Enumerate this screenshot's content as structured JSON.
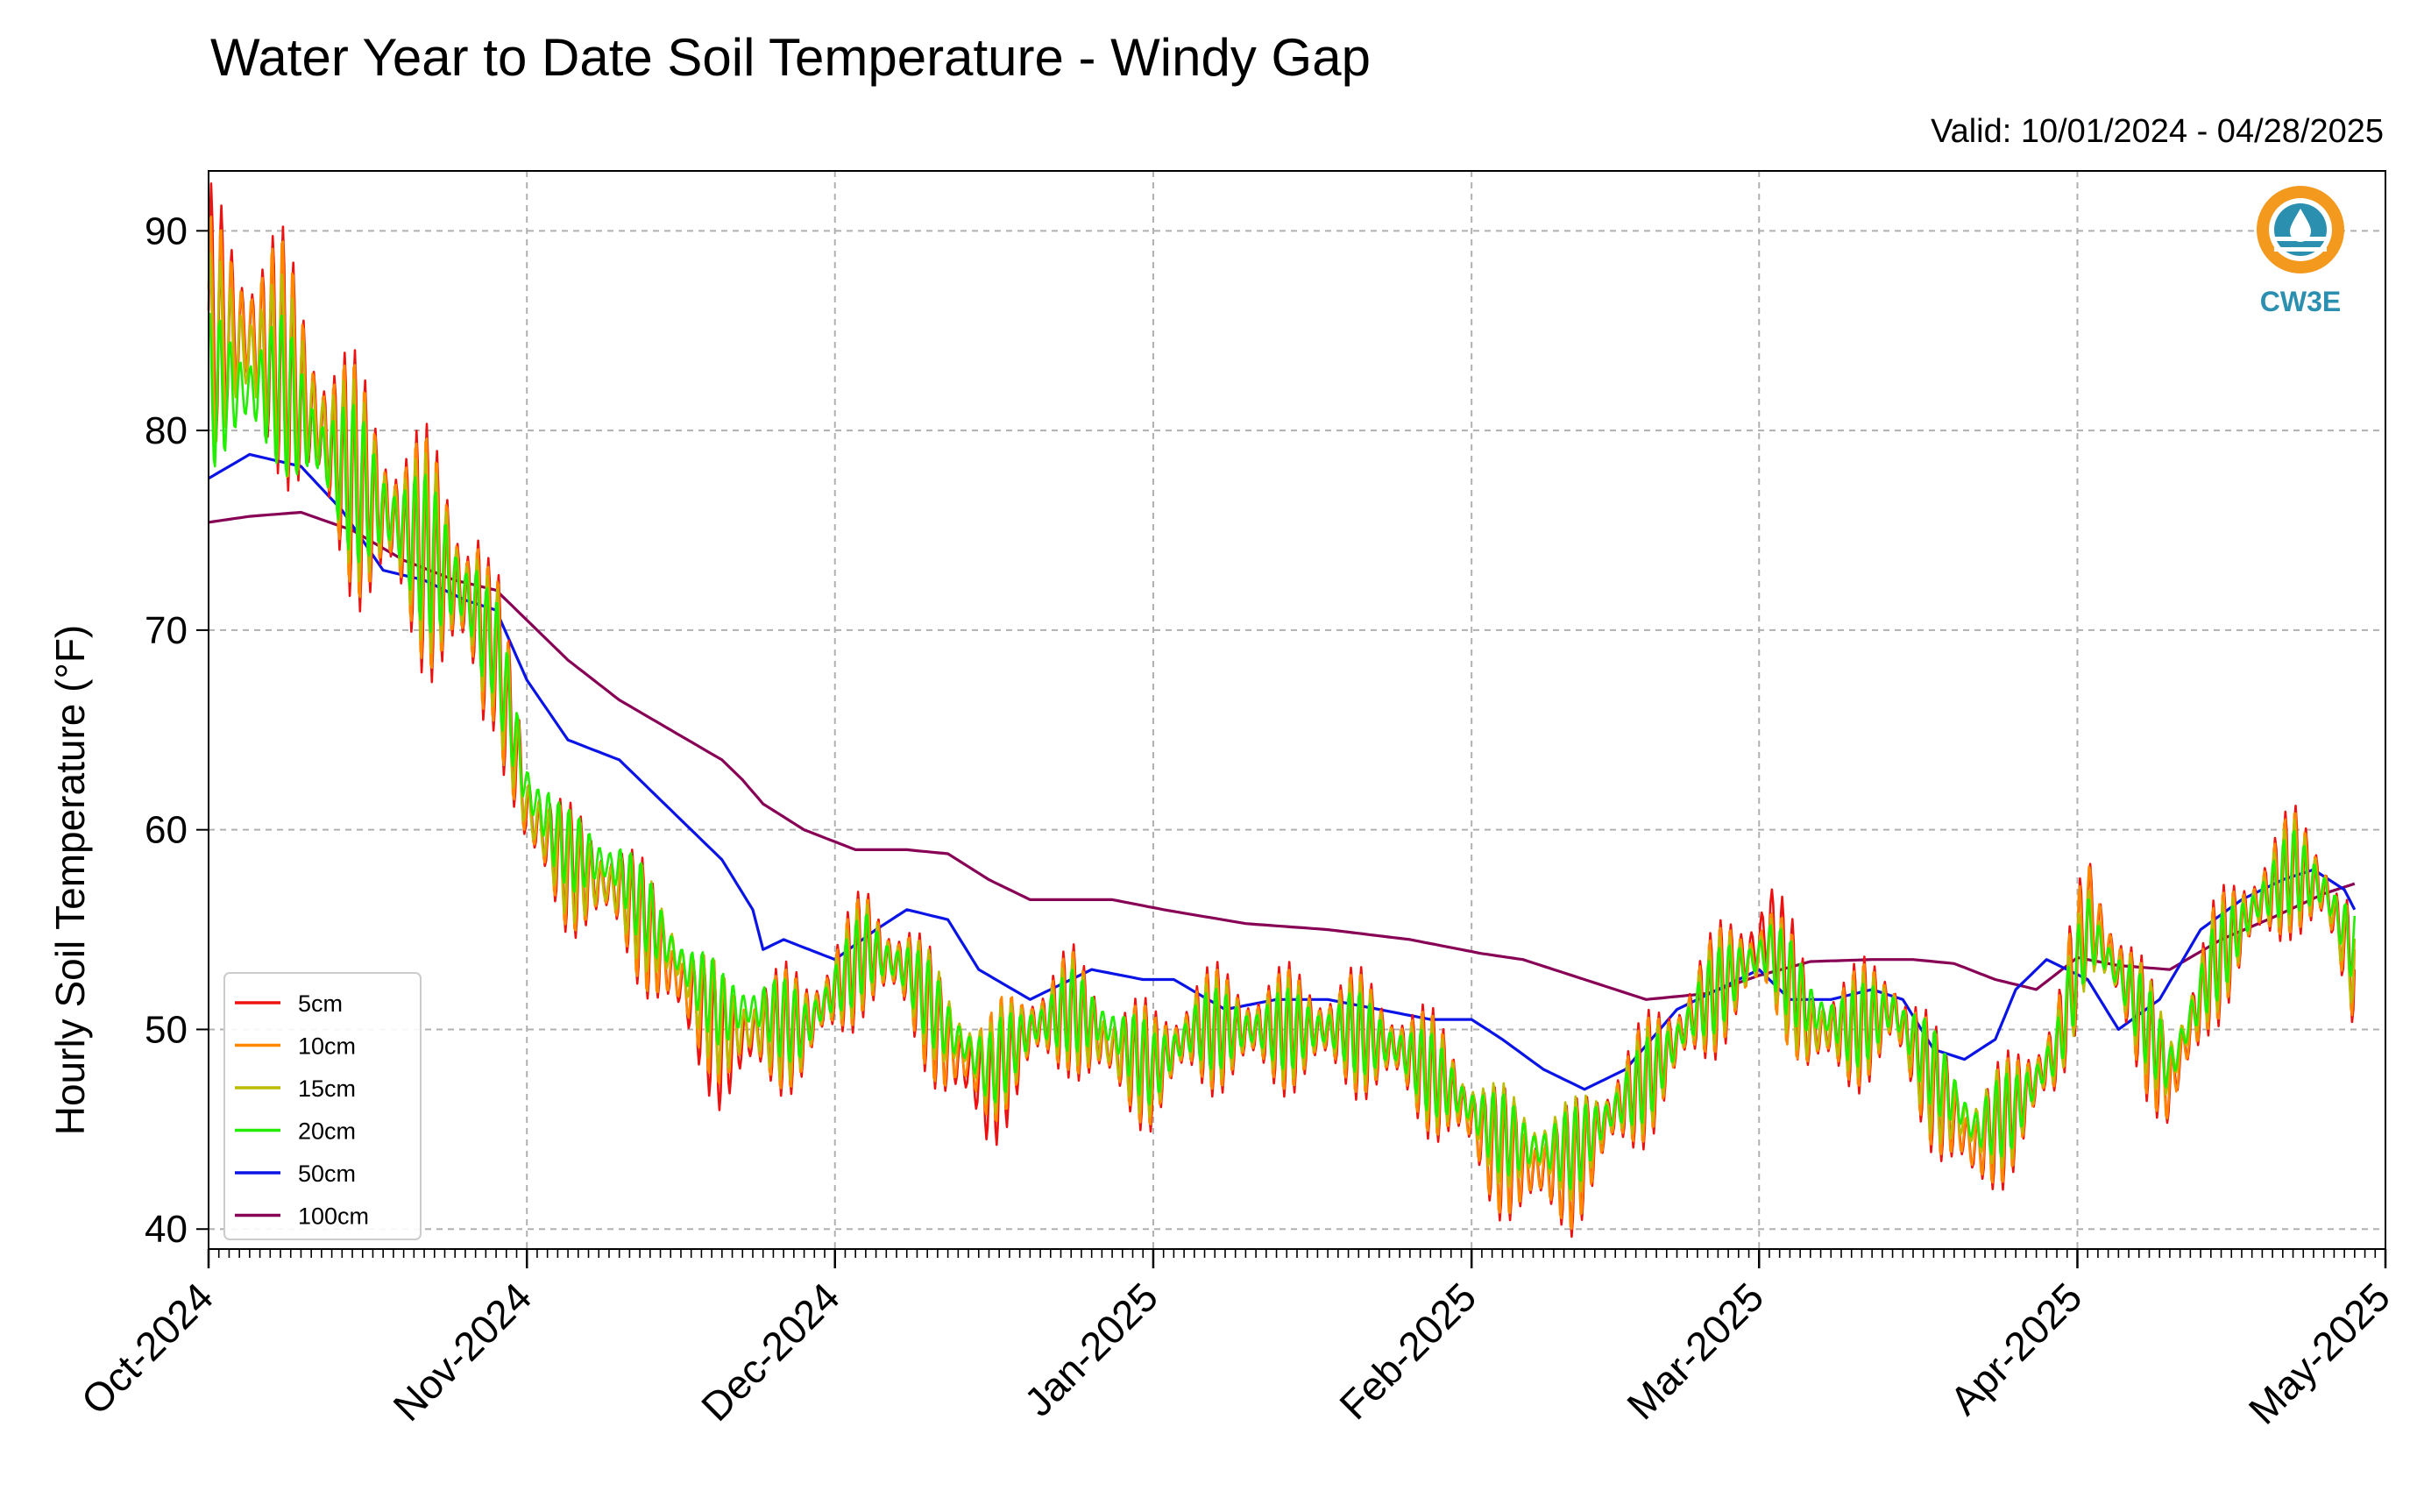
{
  "chart_data": {
    "type": "line",
    "title": "Water Year to Date Soil Temperature - Windy Gap",
    "subtitle": "Valid: 10/01/2024 - 04/28/2025",
    "ylabel": "Hourly Soil Temperature (°F)",
    "xlabel": "",
    "xlim": [
      "2024-10-01",
      "2025-05-01"
    ],
    "ylim": [
      39,
      93
    ],
    "yticks": [
      40,
      50,
      60,
      70,
      80,
      90
    ],
    "xticks": [
      {
        "date": "2024-10-01",
        "label": "Oct-2024"
      },
      {
        "date": "2024-11-01",
        "label": "Nov-2024"
      },
      {
        "date": "2024-12-01",
        "label": "Dec-2024"
      },
      {
        "date": "2025-01-01",
        "label": "Jan-2025"
      },
      {
        "date": "2025-02-01",
        "label": "Feb-2025"
      },
      {
        "date": "2025-03-01",
        "label": "Mar-2025"
      },
      {
        "date": "2025-04-01",
        "label": "Apr-2025"
      },
      {
        "date": "2025-05-01",
        "label": "May-2025"
      }
    ],
    "grid": true,
    "legend_position": "lower-left",
    "logo_text": "CW3E",
    "series": [
      {
        "name": "5cm",
        "color": "#ee1111",
        "x": [
          "2024-10-01",
          "2024-10-04",
          "2024-10-08",
          "2024-10-12",
          "2024-10-16",
          "2024-10-20",
          "2024-10-24",
          "2024-10-27",
          "2024-10-29",
          "2024-11-01",
          "2024-11-05",
          "2024-11-10",
          "2024-11-15",
          "2024-11-20",
          "2024-11-24",
          "2024-11-28",
          "2024-12-01",
          "2024-12-04",
          "2024-12-08",
          "2024-12-12",
          "2024-12-16",
          "2024-12-20",
          "2024-12-24",
          "2024-12-28",
          "2025-01-01",
          "2025-01-05",
          "2025-01-10",
          "2025-01-15",
          "2025-01-20",
          "2025-01-25",
          "2025-01-30",
          "2025-02-03",
          "2025-02-07",
          "2025-02-11",
          "2025-02-15",
          "2025-02-19",
          "2025-02-23",
          "2025-02-27",
          "2025-03-02",
          "2025-03-06",
          "2025-03-10",
          "2025-03-14",
          "2025-03-18",
          "2025-03-22",
          "2025-03-26",
          "2025-03-30",
          "2025-04-02",
          "2025-04-06",
          "2025-04-10",
          "2025-04-14",
          "2025-04-18",
          "2025-04-22",
          "2025-04-25",
          "2025-04-28"
        ],
        "y": [
          86,
          85,
          84,
          80,
          77,
          75,
          73,
          71,
          69,
          61,
          58,
          57,
          53,
          49,
          50,
          50,
          52,
          54,
          53,
          49,
          47,
          50,
          51,
          49,
          48,
          50,
          50,
          50,
          50,
          49,
          47,
          44,
          43,
          43,
          46,
          48,
          51,
          53,
          55,
          50,
          50,
          51,
          47,
          44,
          46,
          49,
          56,
          52,
          47,
          53,
          56,
          58,
          57,
          53
        ]
      },
      {
        "name": "10cm",
        "color": "#ff8800",
        "x": [
          "2024-10-01",
          "2024-10-04",
          "2024-10-08",
          "2024-10-12",
          "2024-10-16",
          "2024-10-20",
          "2024-10-24",
          "2024-10-27",
          "2024-10-29",
          "2024-11-01",
          "2024-11-05",
          "2024-11-10",
          "2024-11-15",
          "2024-11-20",
          "2024-11-24",
          "2024-11-28",
          "2024-12-01",
          "2024-12-04",
          "2024-12-08",
          "2024-12-12",
          "2024-12-16",
          "2024-12-20",
          "2024-12-24",
          "2024-12-28",
          "2025-01-01",
          "2025-01-05",
          "2025-01-10",
          "2025-01-15",
          "2025-01-20",
          "2025-01-25",
          "2025-01-30",
          "2025-02-03",
          "2025-02-07",
          "2025-02-11",
          "2025-02-15",
          "2025-02-19",
          "2025-02-23",
          "2025-02-27",
          "2025-03-02",
          "2025-03-06",
          "2025-03-10",
          "2025-03-14",
          "2025-03-18",
          "2025-03-22",
          "2025-03-26",
          "2025-03-30",
          "2025-04-02",
          "2025-04-06",
          "2025-04-10",
          "2025-04-14",
          "2025-04-18",
          "2025-04-22",
          "2025-04-25",
          "2025-04-28"
        ],
        "y": [
          85,
          85,
          84,
          80,
          77,
          75,
          73,
          71,
          69,
          61,
          58,
          57,
          53,
          50,
          50,
          50,
          52,
          54,
          53,
          49,
          48,
          50,
          51,
          49,
          48,
          50,
          50,
          50,
          50,
          49,
          47,
          44,
          43,
          43,
          46,
          48,
          51,
          53,
          54,
          50,
          50,
          51,
          47,
          44,
          46,
          49,
          56,
          52,
          47,
          53,
          56,
          58,
          57,
          53
        ]
      },
      {
        "name": "15cm",
        "color": "#bbbb00",
        "x": [
          "2024-10-01",
          "2024-10-04",
          "2024-10-08",
          "2024-10-12",
          "2024-10-16",
          "2024-10-20",
          "2024-10-24",
          "2024-10-27",
          "2024-10-29",
          "2024-11-01",
          "2024-11-05",
          "2024-11-10",
          "2024-11-15",
          "2024-11-20",
          "2024-11-24",
          "2024-11-28",
          "2024-12-01",
          "2024-12-04",
          "2024-12-08",
          "2024-12-12",
          "2024-12-16",
          "2024-12-20",
          "2024-12-24",
          "2024-12-28",
          "2025-01-01",
          "2025-01-05",
          "2025-01-10",
          "2025-01-15",
          "2025-01-20",
          "2025-01-25",
          "2025-01-30",
          "2025-02-03",
          "2025-02-07",
          "2025-02-11",
          "2025-02-15",
          "2025-02-19",
          "2025-02-23",
          "2025-02-27",
          "2025-03-02",
          "2025-03-06",
          "2025-03-10",
          "2025-03-14",
          "2025-03-18",
          "2025-03-22",
          "2025-03-26",
          "2025-03-30",
          "2025-04-02",
          "2025-04-06",
          "2025-04-10",
          "2025-04-14",
          "2025-04-18",
          "2025-04-22",
          "2025-04-25",
          "2025-04-28"
        ],
        "y": [
          84,
          84,
          83,
          80,
          77,
          75,
          73,
          71,
          69,
          61,
          58,
          57,
          54,
          50,
          50,
          50,
          52,
          54,
          53,
          50,
          48,
          50,
          51,
          49,
          48,
          50,
          50,
          50,
          50,
          49,
          47,
          45,
          44,
          44,
          46,
          48,
          51,
          53,
          54,
          50,
          50,
          51,
          47,
          45,
          46,
          49,
          55,
          52,
          48,
          53,
          56,
          58,
          57,
          53
        ]
      },
      {
        "name": "20cm",
        "color": "#22ee00",
        "x": [
          "2024-10-01",
          "2024-10-04",
          "2024-10-08",
          "2024-10-12",
          "2024-10-16",
          "2024-10-20",
          "2024-10-24",
          "2024-10-27",
          "2024-10-29",
          "2024-11-01",
          "2024-11-05",
          "2024-11-10",
          "2024-11-15",
          "2024-11-20",
          "2024-11-24",
          "2024-11-28",
          "2024-12-01",
          "2024-12-04",
          "2024-12-08",
          "2024-12-12",
          "2024-12-16",
          "2024-12-20",
          "2024-12-24",
          "2024-12-28",
          "2025-01-01",
          "2025-01-05",
          "2025-01-10",
          "2025-01-15",
          "2025-01-20",
          "2025-01-25",
          "2025-01-30",
          "2025-02-03",
          "2025-02-07",
          "2025-02-11",
          "2025-02-15",
          "2025-02-19",
          "2025-02-23",
          "2025-02-27",
          "2025-03-02",
          "2025-03-06",
          "2025-03-10",
          "2025-03-14",
          "2025-03-18",
          "2025-03-22",
          "2025-03-26",
          "2025-03-30",
          "2025-04-02",
          "2025-04-06",
          "2025-04-10",
          "2025-04-14",
          "2025-04-18",
          "2025-04-22",
          "2025-04-25",
          "2025-04-28"
        ],
        "y": [
          82,
          82,
          82,
          79,
          77,
          75,
          73,
          71,
          69,
          62,
          59,
          58,
          54,
          51,
          51,
          50,
          52,
          54,
          53,
          50,
          48,
          50,
          51,
          50,
          48,
          50,
          50,
          50,
          50,
          49,
          47,
          45,
          44,
          44,
          46,
          48,
          51,
          53,
          54,
          51,
          50,
          51,
          48,
          45,
          46,
          49,
          55,
          52,
          48,
          53,
          56,
          58,
          57,
          54
        ]
      },
      {
        "name": "50cm",
        "color": "#0a14e6",
        "x": [
          "2024-10-01",
          "2024-10-05",
          "2024-10-10",
          "2024-10-14",
          "2024-10-18",
          "2024-10-22",
          "2024-10-26",
          "2024-10-29",
          "2024-11-01",
          "2024-11-05",
          "2024-11-10",
          "2024-11-15",
          "2024-11-20",
          "2024-11-23",
          "2024-11-24",
          "2024-11-26",
          "2024-12-01",
          "2024-12-05",
          "2024-12-08",
          "2024-12-12",
          "2024-12-15",
          "2024-12-20",
          "2024-12-26",
          "2024-12-31",
          "2025-01-03",
          "2025-01-08",
          "2025-01-13",
          "2025-01-18",
          "2025-01-23",
          "2025-01-28",
          "2025-02-01",
          "2025-02-04",
          "2025-02-08",
          "2025-02-12",
          "2025-02-16",
          "2025-02-21",
          "2025-02-25",
          "2025-03-01",
          "2025-03-04",
          "2025-03-08",
          "2025-03-12",
          "2025-03-15",
          "2025-03-18",
          "2025-03-21",
          "2025-03-24",
          "2025-03-26",
          "2025-03-29",
          "2025-04-02",
          "2025-04-05",
          "2025-04-09",
          "2025-04-13",
          "2025-04-17",
          "2025-04-21",
          "2025-04-24",
          "2025-04-27",
          "2025-04-28"
        ],
        "y": [
          77.6,
          78.8,
          78.2,
          76.0,
          73.0,
          72.5,
          71.5,
          71.0,
          67.5,
          64.5,
          63.5,
          61.0,
          58.5,
          56.0,
          54.0,
          54.5,
          53.5,
          55.0,
          56.0,
          55.5,
          53.0,
          51.5,
          53.0,
          52.5,
          52.5,
          51.0,
          51.5,
          51.5,
          51.0,
          50.5,
          50.5,
          49.5,
          48.0,
          47.0,
          48.0,
          51.0,
          52.0,
          53.0,
          51.5,
          51.5,
          52.0,
          51.5,
          49.0,
          48.5,
          49.5,
          52.0,
          53.5,
          52.5,
          50.0,
          51.5,
          55.0,
          56.5,
          57.5,
          58.0,
          57.0,
          56.0
        ]
      },
      {
        "name": "100cm",
        "color": "#880055",
        "x": [
          "2024-10-01",
          "2024-10-05",
          "2024-10-10",
          "2024-10-15",
          "2024-10-20",
          "2024-10-25",
          "2024-10-29",
          "2024-11-01",
          "2024-11-05",
          "2024-11-10",
          "2024-11-15",
          "2024-11-20",
          "2024-11-22",
          "2024-11-24",
          "2024-11-28",
          "2024-12-03",
          "2024-12-08",
          "2024-12-12",
          "2024-12-16",
          "2024-12-20",
          "2024-12-28",
          "2025-01-02",
          "2025-01-10",
          "2025-01-18",
          "2025-01-26",
          "2025-02-02",
          "2025-02-06",
          "2025-02-12",
          "2025-02-18",
          "2025-02-24",
          "2025-03-01",
          "2025-03-06",
          "2025-03-12",
          "2025-03-16",
          "2025-03-20",
          "2025-03-24",
          "2025-03-28",
          "2025-04-01",
          "2025-04-05",
          "2025-04-10",
          "2025-04-15",
          "2025-04-20",
          "2025-04-25",
          "2025-04-28"
        ],
        "y": [
          75.4,
          75.7,
          75.9,
          75.0,
          73.5,
          72.5,
          72.0,
          70.5,
          68.5,
          66.5,
          65.0,
          63.5,
          62.5,
          61.3,
          60.0,
          59.0,
          59.0,
          58.8,
          57.5,
          56.5,
          56.5,
          56.0,
          55.3,
          55.0,
          54.5,
          53.8,
          53.5,
          52.5,
          51.5,
          51.8,
          52.7,
          53.4,
          53.5,
          53.5,
          53.3,
          52.5,
          52.0,
          53.6,
          53.2,
          53.0,
          54.5,
          55.6,
          56.8,
          57.3
        ]
      }
    ]
  }
}
